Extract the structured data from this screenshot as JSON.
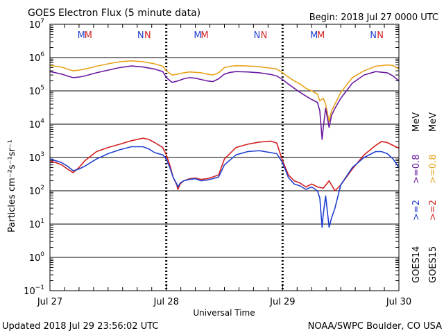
{
  "chart_data": {
    "type": "line",
    "title": "GOES Electron Flux (5 minute data)",
    "begin_label": "Begin: 2018 Jul 27 0000 UTC",
    "ylabel": "Particles cm⁻²s⁻¹sr⁻¹",
    "xlabel": "Universal Time",
    "updated": "Updated 2018 Jul 29 23:56:02 UTC",
    "credit": "NOAA/SWPC Boulder, CO USA",
    "y_scale": "log",
    "ylim": [
      0.1,
      10000000
    ],
    "threshold": 1000,
    "x_ticks": [
      {
        "day": 0,
        "label": "Jul 27"
      },
      {
        "day": 1,
        "label": "Jul 28"
      },
      {
        "day": 2,
        "label": "Jul 29"
      },
      {
        "day": 3,
        "label": "Jul 30"
      }
    ],
    "y_ticks": [
      {
        "exp": -1,
        "base": "10",
        "sup": "−1"
      },
      {
        "exp": 0,
        "base": "10",
        "sup": "0"
      },
      {
        "exp": 1,
        "base": "10",
        "sup": "1"
      },
      {
        "exp": 2,
        "base": "10",
        "sup": "2"
      },
      {
        "exp": 3,
        "base": "10",
        "sup": "3"
      },
      {
        "exp": 4,
        "base": "10",
        "sup": "4"
      },
      {
        "exp": 5,
        "base": "10",
        "sup": "5"
      },
      {
        "exp": 6,
        "base": "10",
        "sup": "6"
      },
      {
        "exp": 7,
        "base": "10",
        "sup": "7"
      }
    ],
    "markers": [
      {
        "day": 0.27,
        "text": "M",
        "color": "#1f3fd0"
      },
      {
        "day": 0.33,
        "text": "M",
        "color": "#d21e1e"
      },
      {
        "day": 0.78,
        "text": "N",
        "color": "#1f3fd0"
      },
      {
        "day": 0.84,
        "text": "N",
        "color": "#d21e1e"
      },
      {
        "day": 1.27,
        "text": "M",
        "color": "#1f3fd0"
      },
      {
        "day": 1.33,
        "text": "M",
        "color": "#d21e1e"
      },
      {
        "day": 1.78,
        "text": "N",
        "color": "#1f3fd0"
      },
      {
        "day": 1.84,
        "text": "N",
        "color": "#d21e1e"
      },
      {
        "day": 2.27,
        "text": "M",
        "color": "#1f3fd0"
      },
      {
        "day": 2.33,
        "text": "M",
        "color": "#d21e1e"
      },
      {
        "day": 2.78,
        "text": "N",
        "color": "#1f3fd0"
      },
      {
        "day": 2.84,
        "text": "N",
        "color": "#d21e1e"
      }
    ],
    "legend": {
      "goes14": "GOES14",
      "goes15": "GOES15",
      "ge2_a": ">=2",
      "ge2_b": ">=2",
      "ge08_a": ">=0.8",
      "ge08_b": ">=0.8",
      "mev_a": "MeV",
      "mev_b": "MeV"
    },
    "series": [
      {
        "color": "#e8a21a",
        "x": [
          0.0,
          0.05,
          0.1,
          0.15,
          0.2,
          0.25,
          0.3,
          0.4,
          0.5,
          0.6,
          0.7,
          0.8,
          0.9,
          0.97,
          1.0,
          1.05,
          1.1,
          1.15,
          1.2,
          1.25,
          1.3,
          1.35,
          1.4,
          1.45,
          1.5,
          1.55,
          1.6,
          1.7,
          1.8,
          1.9,
          1.95,
          2.0,
          2.05,
          2.1,
          2.15,
          2.2,
          2.25,
          2.3,
          2.32,
          2.35,
          2.37,
          2.4,
          2.42,
          2.45,
          2.5,
          2.6,
          2.7,
          2.8,
          2.9,
          2.95,
          3.0
        ],
        "y": [
          580000,
          550000,
          520000,
          450000,
          400000,
          420000,
          450000,
          550000,
          650000,
          750000,
          800000,
          750000,
          650000,
          550000,
          400000,
          300000,
          320000,
          350000,
          370000,
          360000,
          350000,
          320000,
          300000,
          350000,
          500000,
          550000,
          570000,
          560000,
          530000,
          480000,
          450000,
          350000,
          260000,
          200000,
          160000,
          120000,
          100000,
          80000,
          50000,
          60000,
          40000,
          12000,
          25000,
          40000,
          90000,
          250000,
          400000,
          550000,
          600000,
          580000,
          450000
        ]
      },
      {
        "color": "#6a1aa0",
        "x": [
          0.0,
          0.05,
          0.1,
          0.15,
          0.2,
          0.25,
          0.3,
          0.4,
          0.5,
          0.6,
          0.7,
          0.8,
          0.9,
          0.97,
          1.0,
          1.05,
          1.1,
          1.15,
          1.2,
          1.25,
          1.3,
          1.35,
          1.4,
          1.45,
          1.5,
          1.55,
          1.6,
          1.7,
          1.8,
          1.9,
          1.95,
          2.0,
          2.05,
          2.1,
          2.15,
          2.2,
          2.25,
          2.3,
          2.32,
          2.34,
          2.35,
          2.37,
          2.4,
          2.42,
          2.45,
          2.5,
          2.6,
          2.7,
          2.8,
          2.9,
          2.95,
          3.0
        ],
        "y": [
          380000,
          350000,
          320000,
          280000,
          250000,
          260000,
          280000,
          350000,
          420000,
          500000,
          560000,
          520000,
          450000,
          380000,
          250000,
          180000,
          200000,
          230000,
          250000,
          240000,
          220000,
          200000,
          190000,
          230000,
          320000,
          360000,
          380000,
          370000,
          350000,
          310000,
          280000,
          220000,
          160000,
          120000,
          90000,
          70000,
          55000,
          45000,
          25000,
          3500,
          8000,
          30000,
          8000,
          18000,
          30000,
          60000,
          170000,
          300000,
          380000,
          350000,
          280000,
          200000
        ]
      },
      {
        "color": "#d21e1e",
        "x": [
          0.0,
          0.05,
          0.1,
          0.15,
          0.2,
          0.25,
          0.3,
          0.4,
          0.5,
          0.6,
          0.7,
          0.8,
          0.85,
          0.9,
          0.97,
          1.0,
          1.03,
          1.06,
          1.09,
          1.1,
          1.12,
          1.15,
          1.2,
          1.25,
          1.3,
          1.35,
          1.4,
          1.45,
          1.5,
          1.6,
          1.7,
          1.8,
          1.9,
          1.95,
          2.0,
          2.05,
          2.1,
          2.15,
          2.2,
          2.25,
          2.3,
          2.35,
          2.4,
          2.45,
          2.5,
          2.6,
          2.7,
          2.8,
          2.85,
          2.9,
          2.95,
          3.0
        ],
        "y": [
          800,
          700,
          600,
          450,
          350,
          500,
          800,
          1500,
          2000,
          2500,
          3200,
          3800,
          3500,
          2800,
          2000,
          1200,
          600,
          250,
          150,
          110,
          160,
          200,
          230,
          240,
          220,
          230,
          260,
          300,
          900,
          2000,
          2500,
          2900,
          3100,
          2700,
          800,
          300,
          200,
          170,
          130,
          160,
          130,
          120,
          200,
          100,
          150,
          450,
          1200,
          2300,
          3000,
          2800,
          2300,
          1900
        ]
      },
      {
        "color": "#1f3fd0",
        "x": [
          0.0,
          0.05,
          0.1,
          0.15,
          0.2,
          0.25,
          0.3,
          0.4,
          0.5,
          0.6,
          0.7,
          0.8,
          0.85,
          0.9,
          0.97,
          1.0,
          1.03,
          1.06,
          1.09,
          1.1,
          1.12,
          1.15,
          1.2,
          1.25,
          1.3,
          1.35,
          1.4,
          1.45,
          1.5,
          1.6,
          1.7,
          1.8,
          1.9,
          1.95,
          2.0,
          2.05,
          2.1,
          2.15,
          2.2,
          2.25,
          2.3,
          2.32,
          2.34,
          2.35,
          2.37,
          2.4,
          2.42,
          2.45,
          2.5,
          2.6,
          2.7,
          2.8,
          2.85,
          2.9,
          2.95,
          3.0
        ],
        "y": [
          900,
          800,
          700,
          550,
          400,
          450,
          550,
          900,
          1300,
          1700,
          2100,
          2100,
          1800,
          1400,
          1200,
          900,
          500,
          250,
          160,
          130,
          170,
          200,
          220,
          230,
          200,
          210,
          230,
          260,
          600,
          1200,
          1500,
          1600,
          1400,
          1300,
          700,
          250,
          160,
          140,
          110,
          130,
          100,
          60,
          8,
          20,
          70,
          8,
          15,
          30,
          150,
          500,
          1000,
          1500,
          1500,
          1300,
          900,
          500
        ]
      }
    ]
  }
}
